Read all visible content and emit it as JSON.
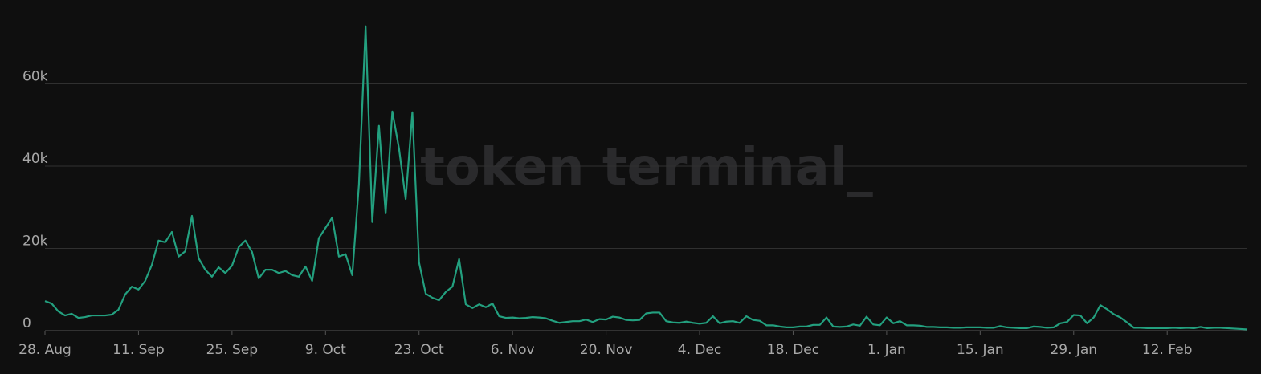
{
  "chart_data": {
    "type": "line",
    "watermark": "token terminal_",
    "categories": [
      "28. Aug",
      null,
      null,
      null,
      null,
      null,
      null,
      null,
      null,
      null,
      null,
      null,
      null,
      null,
      "11. Sep",
      null,
      null,
      null,
      null,
      null,
      null,
      null,
      null,
      null,
      null,
      null,
      null,
      null,
      "25. Sep",
      null,
      null,
      null,
      null,
      null,
      null,
      null,
      null,
      null,
      null,
      null,
      null,
      null,
      "9. Oct",
      null,
      null,
      null,
      null,
      null,
      null,
      null,
      null,
      null,
      null,
      null,
      null,
      null,
      "23. Oct",
      null,
      null,
      null,
      null,
      null,
      null,
      null,
      null,
      null,
      null,
      null,
      null,
      null,
      "6. Nov",
      null,
      null,
      null,
      null,
      null,
      null,
      null,
      null,
      null,
      null,
      null,
      null,
      null,
      "20. Nov",
      null,
      null,
      null,
      null,
      null,
      null,
      null,
      null,
      null,
      null,
      null,
      null,
      null,
      "4. Dec",
      null,
      null,
      null,
      null,
      null,
      null,
      null,
      null,
      null,
      null,
      null,
      null,
      null,
      "18. Dec",
      null,
      null,
      null,
      null,
      null,
      null,
      null,
      null,
      null,
      null,
      null,
      null,
      null,
      "1. Jan",
      null,
      null,
      null,
      null,
      null,
      null,
      null,
      null,
      null,
      null,
      null,
      null,
      null,
      "15. Jan",
      null,
      null,
      null,
      null,
      null,
      null,
      null,
      null,
      null,
      null,
      null,
      null,
      null,
      "29. Jan",
      null,
      null,
      null,
      null,
      null,
      null,
      null,
      null,
      null,
      null,
      null,
      null,
      null,
      "12. Feb",
      null,
      null,
      null,
      null,
      null,
      null,
      null,
      null,
      null,
      null,
      null,
      null
    ],
    "series": [
      {
        "color": "#23a07f",
        "values": [
          7200,
          6600,
          4700,
          3700,
          4100,
          3100,
          3300,
          3700,
          3700,
          3700,
          3900,
          5100,
          8800,
          10700,
          10000,
          12100,
          16000,
          21900,
          21500,
          24000,
          18000,
          19300,
          27900,
          17600,
          14800,
          13100,
          15400,
          14000,
          15800,
          20300,
          21900,
          19100,
          12700,
          14800,
          14800,
          14000,
          14500,
          13500,
          13100,
          15600,
          12100,
          22500,
          25000,
          27500,
          18000,
          18600,
          13500,
          35500,
          74000,
          26400,
          49800,
          28500,
          53300,
          44300,
          32000,
          53100,
          16600,
          9000,
          8000,
          7400,
          9400,
          10700,
          17400,
          6400,
          5500,
          6400,
          5700,
          6600,
          3500,
          3100,
          3200,
          3000,
          3100,
          3300,
          3200,
          3000,
          2400,
          1900,
          2100,
          2300,
          2300,
          2700,
          2100,
          2800,
          2700,
          3400,
          3200,
          2600,
          2500,
          2600,
          4200,
          4400,
          4400,
          2300,
          2000,
          1900,
          2200,
          1900,
          1700,
          1900,
          3500,
          1800,
          2200,
          2300,
          1900,
          3500,
          2600,
          2400,
          1300,
          1300,
          1000,
          800,
          800,
          1000,
          1000,
          1400,
          1400,
          3200,
          1000,
          900,
          1000,
          1500,
          1200,
          3400,
          1500,
          1300,
          3200,
          1800,
          2300,
          1300,
          1300,
          1200,
          900,
          900,
          800,
          800,
          700,
          700,
          800,
          800,
          800,
          700,
          700,
          1100,
          800,
          700,
          600,
          600,
          1000,
          900,
          700,
          800,
          1800,
          2100,
          3800,
          3700,
          1800,
          3200,
          6200,
          5200,
          4000,
          3200,
          2000,
          700,
          700,
          600,
          600,
          600,
          600,
          700,
          600,
          700,
          600,
          900,
          600,
          700,
          700,
          600,
          500,
          400,
          300
        ]
      }
    ],
    "ylim": [
      0,
      80000
    ],
    "yticks": [
      {
        "value": 0,
        "label": "0"
      },
      {
        "value": 20000,
        "label": "20k"
      },
      {
        "value": 40000,
        "label": "40k"
      },
      {
        "value": 60000,
        "label": "60k"
      }
    ],
    "grid": true
  }
}
